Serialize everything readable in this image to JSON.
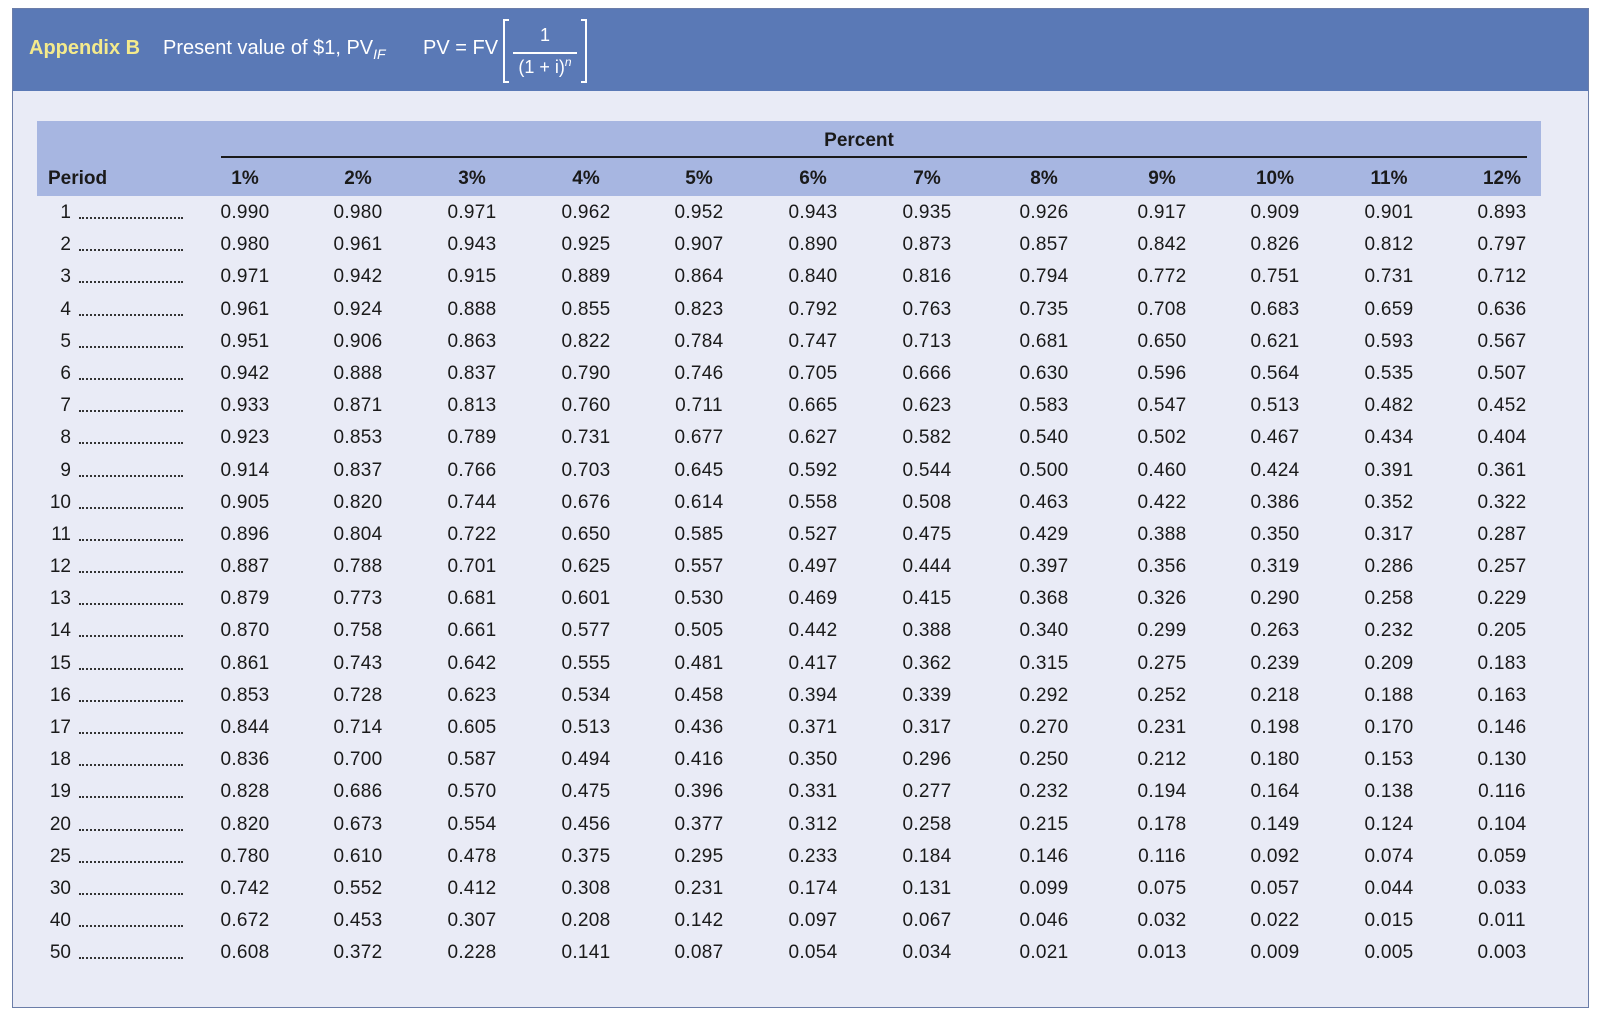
{
  "header": {
    "appendix_label": "Appendix B",
    "title": "Present value of $1, PV",
    "title_subscript": "IF",
    "formula_lhs": "PV = FV",
    "formula_numerator": "1",
    "formula_denominator": "(1 + i)",
    "formula_exponent": "n"
  },
  "colors": {
    "banner": "#5a79b6",
    "appendix_label": "#f4ea8c",
    "table_header": "#a7b6e1",
    "table_body": "#e9ebf6"
  },
  "table": {
    "percent_label": "Percent",
    "period_label": "Period",
    "columns": [
      "1%",
      "2%",
      "3%",
      "4%",
      "5%",
      "6%",
      "7%",
      "8%",
      "9%",
      "10%",
      "11%",
      "12%"
    ],
    "rows": [
      {
        "period": "1",
        "values": [
          "0.990",
          "0.980",
          "0.971",
          "0.962",
          "0.952",
          "0.943",
          "0.935",
          "0.926",
          "0.917",
          "0.909",
          "0.901",
          "0.893"
        ]
      },
      {
        "period": "2",
        "values": [
          "0.980",
          "0.961",
          "0.943",
          "0.925",
          "0.907",
          "0.890",
          "0.873",
          "0.857",
          "0.842",
          "0.826",
          "0.812",
          "0.797"
        ]
      },
      {
        "period": "3",
        "values": [
          "0.971",
          "0.942",
          "0.915",
          "0.889",
          "0.864",
          "0.840",
          "0.816",
          "0.794",
          "0.772",
          "0.751",
          "0.731",
          "0.712"
        ]
      },
      {
        "period": "4",
        "values": [
          "0.961",
          "0.924",
          "0.888",
          "0.855",
          "0.823",
          "0.792",
          "0.763",
          "0.735",
          "0.708",
          "0.683",
          "0.659",
          "0.636"
        ]
      },
      {
        "period": "5",
        "values": [
          "0.951",
          "0.906",
          "0.863",
          "0.822",
          "0.784",
          "0.747",
          "0.713",
          "0.681",
          "0.650",
          "0.621",
          "0.593",
          "0.567"
        ]
      },
      {
        "period": "6",
        "values": [
          "0.942",
          "0.888",
          "0.837",
          "0.790",
          "0.746",
          "0.705",
          "0.666",
          "0.630",
          "0.596",
          "0.564",
          "0.535",
          "0.507"
        ]
      },
      {
        "period": "7",
        "values": [
          "0.933",
          "0.871",
          "0.813",
          "0.760",
          "0.711",
          "0.665",
          "0.623",
          "0.583",
          "0.547",
          "0.513",
          "0.482",
          "0.452"
        ]
      },
      {
        "period": "8",
        "values": [
          "0.923",
          "0.853",
          "0.789",
          "0.731",
          "0.677",
          "0.627",
          "0.582",
          "0.540",
          "0.502",
          "0.467",
          "0.434",
          "0.404"
        ]
      },
      {
        "period": "9",
        "values": [
          "0.914",
          "0.837",
          "0.766",
          "0.703",
          "0.645",
          "0.592",
          "0.544",
          "0.500",
          "0.460",
          "0.424",
          "0.391",
          "0.361"
        ]
      },
      {
        "period": "10",
        "values": [
          "0.905",
          "0.820",
          "0.744",
          "0.676",
          "0.614",
          "0.558",
          "0.508",
          "0.463",
          "0.422",
          "0.386",
          "0.352",
          "0.322"
        ]
      },
      {
        "period": "11",
        "values": [
          "0.896",
          "0.804",
          "0.722",
          "0.650",
          "0.585",
          "0.527",
          "0.475",
          "0.429",
          "0.388",
          "0.350",
          "0.317",
          "0.287"
        ]
      },
      {
        "period": "12",
        "values": [
          "0.887",
          "0.788",
          "0.701",
          "0.625",
          "0.557",
          "0.497",
          "0.444",
          "0.397",
          "0.356",
          "0.319",
          "0.286",
          "0.257"
        ]
      },
      {
        "period": "13",
        "values": [
          "0.879",
          "0.773",
          "0.681",
          "0.601",
          "0.530",
          "0.469",
          "0.415",
          "0.368",
          "0.326",
          "0.290",
          "0.258",
          "0.229"
        ]
      },
      {
        "period": "14",
        "values": [
          "0.870",
          "0.758",
          "0.661",
          "0.577",
          "0.505",
          "0.442",
          "0.388",
          "0.340",
          "0.299",
          "0.263",
          "0.232",
          "0.205"
        ]
      },
      {
        "period": "15",
        "values": [
          "0.861",
          "0.743",
          "0.642",
          "0.555",
          "0.481",
          "0.417",
          "0.362",
          "0.315",
          "0.275",
          "0.239",
          "0.209",
          "0.183"
        ]
      },
      {
        "period": "16",
        "values": [
          "0.853",
          "0.728",
          "0.623",
          "0.534",
          "0.458",
          "0.394",
          "0.339",
          "0.292",
          "0.252",
          "0.218",
          "0.188",
          "0.163"
        ]
      },
      {
        "period": "17",
        "values": [
          "0.844",
          "0.714",
          "0.605",
          "0.513",
          "0.436",
          "0.371",
          "0.317",
          "0.270",
          "0.231",
          "0.198",
          "0.170",
          "0.146"
        ]
      },
      {
        "period": "18",
        "values": [
          "0.836",
          "0.700",
          "0.587",
          "0.494",
          "0.416",
          "0.350",
          "0.296",
          "0.250",
          "0.212",
          "0.180",
          "0.153",
          "0.130"
        ]
      },
      {
        "period": "19",
        "values": [
          "0.828",
          "0.686",
          "0.570",
          "0.475",
          "0.396",
          "0.331",
          "0.277",
          "0.232",
          "0.194",
          "0.164",
          "0.138",
          "0.116"
        ]
      },
      {
        "period": "20",
        "values": [
          "0.820",
          "0.673",
          "0.554",
          "0.456",
          "0.377",
          "0.312",
          "0.258",
          "0.215",
          "0.178",
          "0.149",
          "0.124",
          "0.104"
        ]
      },
      {
        "period": "25",
        "values": [
          "0.780",
          "0.610",
          "0.478",
          "0.375",
          "0.295",
          "0.233",
          "0.184",
          "0.146",
          "0.116",
          "0.092",
          "0.074",
          "0.059"
        ]
      },
      {
        "period": "30",
        "values": [
          "0.742",
          "0.552",
          "0.412",
          "0.308",
          "0.231",
          "0.174",
          "0.131",
          "0.099",
          "0.075",
          "0.057",
          "0.044",
          "0.033"
        ]
      },
      {
        "period": "40",
        "values": [
          "0.672",
          "0.453",
          "0.307",
          "0.208",
          "0.142",
          "0.097",
          "0.067",
          "0.046",
          "0.032",
          "0.022",
          "0.015",
          "0.011"
        ]
      },
      {
        "period": "50",
        "values": [
          "0.608",
          "0.372",
          "0.228",
          "0.141",
          "0.087",
          "0.054",
          "0.034",
          "0.021",
          "0.013",
          "0.009",
          "0.005",
          "0.003"
        ]
      }
    ]
  }
}
